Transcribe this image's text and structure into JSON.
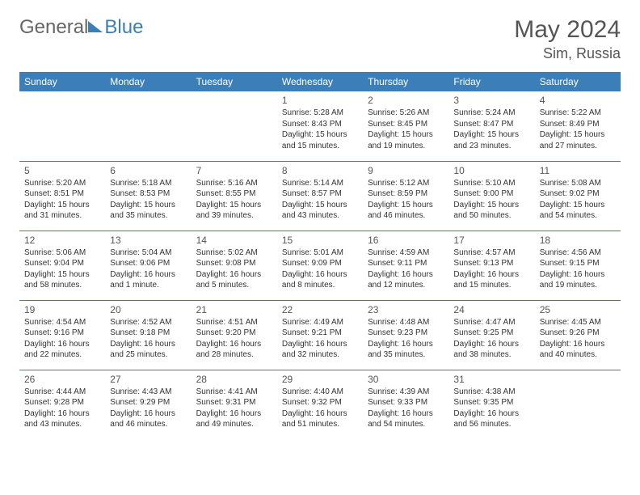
{
  "logo": {
    "part1": "General",
    "part2": "Blue"
  },
  "title": "May 2024",
  "location": "Sim, Russia",
  "colors": {
    "accent": "#3c7fb8",
    "header_text": "#ffffff",
    "body_text": "#333333",
    "muted": "#555555",
    "bg": "#ffffff"
  },
  "fonts": {
    "title_size": 30,
    "location_size": 18,
    "dayhead_size": 12,
    "daynum_size": 12,
    "cell_size": 10
  },
  "day_headers": [
    "Sunday",
    "Monday",
    "Tuesday",
    "Wednesday",
    "Thursday",
    "Friday",
    "Saturday"
  ],
  "weeks": [
    [
      null,
      null,
      null,
      {
        "n": "1",
        "sr": "5:28 AM",
        "ss": "8:43 PM",
        "dl": "15 hours and 15 minutes."
      },
      {
        "n": "2",
        "sr": "5:26 AM",
        "ss": "8:45 PM",
        "dl": "15 hours and 19 minutes."
      },
      {
        "n": "3",
        "sr": "5:24 AM",
        "ss": "8:47 PM",
        "dl": "15 hours and 23 minutes."
      },
      {
        "n": "4",
        "sr": "5:22 AM",
        "ss": "8:49 PM",
        "dl": "15 hours and 27 minutes."
      }
    ],
    [
      {
        "n": "5",
        "sr": "5:20 AM",
        "ss": "8:51 PM",
        "dl": "15 hours and 31 minutes."
      },
      {
        "n": "6",
        "sr": "5:18 AM",
        "ss": "8:53 PM",
        "dl": "15 hours and 35 minutes."
      },
      {
        "n": "7",
        "sr": "5:16 AM",
        "ss": "8:55 PM",
        "dl": "15 hours and 39 minutes."
      },
      {
        "n": "8",
        "sr": "5:14 AM",
        "ss": "8:57 PM",
        "dl": "15 hours and 43 minutes."
      },
      {
        "n": "9",
        "sr": "5:12 AM",
        "ss": "8:59 PM",
        "dl": "15 hours and 46 minutes."
      },
      {
        "n": "10",
        "sr": "5:10 AM",
        "ss": "9:00 PM",
        "dl": "15 hours and 50 minutes."
      },
      {
        "n": "11",
        "sr": "5:08 AM",
        "ss": "9:02 PM",
        "dl": "15 hours and 54 minutes."
      }
    ],
    [
      {
        "n": "12",
        "sr": "5:06 AM",
        "ss": "9:04 PM",
        "dl": "15 hours and 58 minutes."
      },
      {
        "n": "13",
        "sr": "5:04 AM",
        "ss": "9:06 PM",
        "dl": "16 hours and 1 minute."
      },
      {
        "n": "14",
        "sr": "5:02 AM",
        "ss": "9:08 PM",
        "dl": "16 hours and 5 minutes."
      },
      {
        "n": "15",
        "sr": "5:01 AM",
        "ss": "9:09 PM",
        "dl": "16 hours and 8 minutes."
      },
      {
        "n": "16",
        "sr": "4:59 AM",
        "ss": "9:11 PM",
        "dl": "16 hours and 12 minutes."
      },
      {
        "n": "17",
        "sr": "4:57 AM",
        "ss": "9:13 PM",
        "dl": "16 hours and 15 minutes."
      },
      {
        "n": "18",
        "sr": "4:56 AM",
        "ss": "9:15 PM",
        "dl": "16 hours and 19 minutes."
      }
    ],
    [
      {
        "n": "19",
        "sr": "4:54 AM",
        "ss": "9:16 PM",
        "dl": "16 hours and 22 minutes."
      },
      {
        "n": "20",
        "sr": "4:52 AM",
        "ss": "9:18 PM",
        "dl": "16 hours and 25 minutes."
      },
      {
        "n": "21",
        "sr": "4:51 AM",
        "ss": "9:20 PM",
        "dl": "16 hours and 28 minutes."
      },
      {
        "n": "22",
        "sr": "4:49 AM",
        "ss": "9:21 PM",
        "dl": "16 hours and 32 minutes."
      },
      {
        "n": "23",
        "sr": "4:48 AM",
        "ss": "9:23 PM",
        "dl": "16 hours and 35 minutes."
      },
      {
        "n": "24",
        "sr": "4:47 AM",
        "ss": "9:25 PM",
        "dl": "16 hours and 38 minutes."
      },
      {
        "n": "25",
        "sr": "4:45 AM",
        "ss": "9:26 PM",
        "dl": "16 hours and 40 minutes."
      }
    ],
    [
      {
        "n": "26",
        "sr": "4:44 AM",
        "ss": "9:28 PM",
        "dl": "16 hours and 43 minutes."
      },
      {
        "n": "27",
        "sr": "4:43 AM",
        "ss": "9:29 PM",
        "dl": "16 hours and 46 minutes."
      },
      {
        "n": "28",
        "sr": "4:41 AM",
        "ss": "9:31 PM",
        "dl": "16 hours and 49 minutes."
      },
      {
        "n": "29",
        "sr": "4:40 AM",
        "ss": "9:32 PM",
        "dl": "16 hours and 51 minutes."
      },
      {
        "n": "30",
        "sr": "4:39 AM",
        "ss": "9:33 PM",
        "dl": "16 hours and 54 minutes."
      },
      {
        "n": "31",
        "sr": "4:38 AM",
        "ss": "9:35 PM",
        "dl": "16 hours and 56 minutes."
      },
      null
    ]
  ],
  "labels": {
    "sunrise": "Sunrise:",
    "sunset": "Sunset:",
    "daylight": "Daylight:"
  }
}
